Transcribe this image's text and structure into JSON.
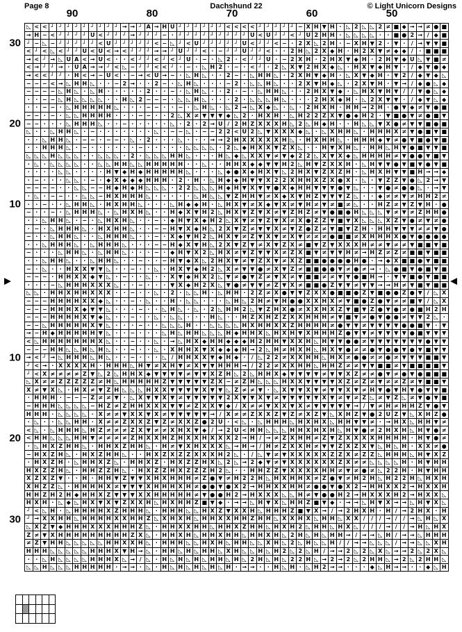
{
  "header": {
    "page_label": "Page 8",
    "title": "Dachshund 22",
    "copyright": "© Light Unicorn Designs"
  },
  "chart": {
    "cols": 53,
    "rows": 68,
    "column_labels": [
      {
        "text": "90",
        "line": 6
      },
      {
        "text": "80",
        "line": 16
      },
      {
        "text": "70",
        "line": 26
      },
      {
        "text": "60",
        "line": 36
      },
      {
        "text": "50",
        "line": 46
      }
    ],
    "row_labels_left": [
      {
        "text": "30",
        "row": 3
      },
      {
        "text": "20",
        "row": 13
      },
      {
        "text": "10",
        "row": 23
      },
      {
        "text": "10",
        "row": 42
      },
      {
        "text": "20",
        "row": 52
      },
      {
        "text": "30",
        "row": 62
      }
    ],
    "center_row_markers": {
      "left": "▶",
      "right": "◀"
    },
    "symbols_used": [
      "◺",
      "<",
      "┘",
      "→",
      "A",
      "H",
      "U",
      "−",
      "·",
      "2",
      "Z",
      "X",
      "▼",
      "◆",
      "●",
      "■",
      "≠",
      "/"
    ],
    "grid_rows": [
      "◺<<┘┘┘┘┘┘┘┘┘→→┘A→HU┘┘┘┘┘┘<<<<┘┘┘┘┘−XH▼H·◺2◺◺2≠■◆→→≠●■",
      "→H−<┘┘┘┘U<┘┘┘→┘┘┘−·┘┘┘┘┘┘┘┘┘U<U┘┘<┘U2HH·◺◺◺◺··■●2→/◆■■",
      "┘−◺−┘┘┘┘┘<U┘┘┘┘┘<−◺┘<U┘┘┘┘┘U<┘┘<−·2X◺2H·−XH▼2·▼·/→▼▼■",
      "<┘<◺<┘┘U<U<→<┘┘┘→→┘U┘┘<·−┘┘U┘┘<··2H◺2X◆H·H2X▼≠◆◆/·■■■",
      "→<┘→◺UA<→U<··<┘┘<┘<┘U·−·◺2·<┘┘U·−2XH·2HX▼◆H·2H▼◆U◺▼■≠",
      "<→┘┘→·UA→→┘<◺−┘┘<<┘·−·◺H2·−·<┘·2◺X▼2HX◆◺·HX▼◆H▼·/◆▼●◆",
      "→<<┘┘·H<→−U<·−→<U→−·◺H◺··2−·◺HH◺·2XH▼◆H·◺X▼◆H·▼2/◆▼◆◺",
      "−−−<→◺HH◺··−2→··2−·◺H◺···−2·◺◺H◺··2X▼H◆◺·2X▼H·▼→/◆●◺◆",
      "−−−−◺H◺·◺H·····2··−·◺H◺··2·−·◺HH◺··2HX▼◆·◺HX▼H▼//▼●◺◆",
      "··−−◺H◺◺◺◺··H◺2−−−·◺◺H◺···2·◺◺◺H◺···2HX◆H·◺2X▼▼·/◆▼◺◆",
      "··−−·◺HHHHH◺···−−··−·◺H◺·◺2→◺X◆◺·◺·2HXH·HH→2H·●▼◆≠▼●■",
      "−−·−·◺◺HHHH···−−··2◺X≠▼▼▼◆◺2·HXH·◺H22ZX▼●◆H2·▼■●▼≠●■▼",
      "−−···◺HHH◺··−·····◺·2·2→U/2HZXXXH◺2◺H◆H··H◺◺▼X●≠▼▼■●■",
      "◺··◺HH◺·−·······◺·−−◺·−−22<U2◺▼XXX◆◺·◺XHH◺·HHHX≠▼●■▼■",
      "··◺HH◺·−−·−−·◺·2···◺···→→2HXXXXXH◺·HXHH◺·HHH◆▼≠●▼■●▼■",
      "··HHH◺·−······−···_·◺◺◺◺·2◺◆HXX▼ZX◺··H▼XH◺·HH◺H▼●■▼▼■",
      "◺◺◺H◺◺◺··◺◺◺·2·◺◺◺HH◺···H◺◆◺XX▼≠▼◆22◺X▼X◆◺HHHH≠▼●●▼■▼",
      "·◺·◺◺◺◺··◺◺HH◺◺HHHHH··◺··HHX◆◆▼▼H2◺H▼ZXXH·◺H▼▼●▼■▼●▼■",
      "····◺◺····H▼◆H◆HHHHH◺···◺◆●X◆HX▼◺2HX▼ZXZH·◺HXH▼▼■H→→◆",
      "·−···◺◺·−·◆X◆◆◆HHH·2·H·◺H◆◆H▼▼X22XHHXZX●X·◺·▼ZZ▼●◺2→▼",
      "−−−−··◺◺−−H◆H◆H◺◺◺·22◺◺◺H◆H▼X▼▼●X◆HH▼▼▼●▼◺··▼●≠●●◺·→▼",
      "·◺·−−··◺◺−HXHHH◺·····◺H◺◺▼ZHH▼≠X◆X▼HZ▼▼▼Z◺··◆≠≠▼≠HH2≠",
      "··−··◺HH◺·HXHH◺···◺H◆◆H·◺HX▼≠X◆▼X≠▼H≠▼≠■≠◺··HZ≠▼Z▼H·●",
      "−··−·◺HHH◺·◺HXH◺··H◆X▼H2◺HX▼Z▼X≠▼ZHZ≠▼●■●H◺◺◺▼≠▼≠ZHH●",
      "··◺HH◺·−·◺HXH◺··−·◆H▼X◆H2◺X▼≠▼Z▼X≠X●ZZ▼■▼X◺◺◺XZ▼●≠▼≠●",
      "·−·◺HHH◺·HXHH◺··−−H▼X◆H◺2X▼Z≠▼▼X≠▼Z●Z≠▼■▼ZH·HH▼▼▼≠≠▼●",
      "−··◺HH◺··◺HHH◺··−·X◆▼H2◺HX▼≠Z▼X▼≠X▼≠≠≠●■■≠XHHHX●▼●●●●",
      "··◺HHH◺·◺HHH◺···−−H◆X▼H◺2X▼Z▼≠X▼ZX≠■▼Z▼XXXH≠≠▼≠≠▼■■▼■",
      "−···◺HH◺·◺HH◺···−·◆H▼X2◺HX≠▼Z▼▼X≠ZX■▼≠▼▼H≠→HZ≠Z≠■■▼■■",
      "··◺HH◺··◺HH◺··−··−H▼◆X◺2HX▼≠▼ZX▼≠XZ■■●●●●H●·→◆X■■●▼■■",
      "−·◺··HXX▼▼◺··−··◺·HX▼◆H2◺X≠▼▼●≠X▼Z≠■■●●▼≠●≠→·◺●■▼●■▼■",
      "−−−·HHXX◆▼◺·−··◺··X▼◆HX2◺▼≠●▼Z≠▼X≠▼■■≠≠▼▼●■H→·▼▼■●▼■■",
      "···−◺HHHXXX◺··−···▼X◆H2X◺▼●≠▼▼≠Z▼X≠■■●Z▼▼≠▼▼→→H≠▼■▼■■",
      "◺◺·HHXHHXXX··−··◺·2·◺◺H·◺HH·2Z≠X●▼▼ZXX●■■●Z▼■●●Z●▼/◺X",
      "−−−HHHHXX◆◺··−·◺··H·◺◺···◺H◺2H≠▼H●●XXHX≠▼■●Z●▼≠≠■▼/◺X",
      "−−−HHHX◆▼▼◺···−··◺H◺·◺·2◺HH2◺▼ZHX●≠XXHXZ▼■▼Z●▼●≠●■H2H",
      "−−−HHHHX▼◆◺··−··◺·◺◺···H◺··HZXHZZXXHHH≠▼■▼≠●▼●●≠▼▼2◺·",
      "−−◺HHHHHX▼◺···−··◺◺◺H··◺◺◺◺HXHHXXZHHHH≠●▼▼≠▼▼▼▼●●■▼·▼",
      "→−H◆HHHHH▼◺··−···◺H◺HH◺◺◺H◆HHX◺HXH▼XHHHZ●▼▼≠▼▼▼▼●■▼▼▼",
      "<◺HHHHHHHX◺··−··◺·→◺HX◆HH◆◆◆H2HH▼XXH◺H▼▼●●≠▼▼▼▼▼▼▼●▼▼",
      "−−−HH◺◺H◺H◺··−··◺·XHHX▼X◆◆◆H→2◺H≠HXH◺HX▼●≠≠●▼●●▼●▼■▼▼",
      "→<┘→◺HHH◺H◺··−···◺/HHXX▼◆H◆·/◺22≠XXHH◺HX≠●●≠≠●≠▼▼▼■■▼",
      "┘<→·XXXXH·HHH◺H▼≠XH▼≠X▼▼HHH→/22≠XXHH◺HHZ≠≠▼▼■■≠▼■■■■▼",
      "┘<X≠≠≠≠Z▼◺2◺HHX◆▼▼▼▼≠▼▼XZH◺2◺HHX◆▼▼▼▼≠▼▼XZ≠≠●▼≠●▼●■■■",
      "◺X≠≠ZZZZZ≠H◺HHHHHZ▼▼▼▼▼ZX−≠ZH◺◺◺HXX▼▼▼▼XZ≠Z≠▼≠≠Z≠▼■■▼",
      "X≠▼X◺·HX≠▼ZH◺◺◺HXX▼▼▼▼X▼▼◺Z≠≠▼·◺X▼▼X▼≠▼▼X▼≠H▼●▼H▼●▼▼■",
      "·HHH·−−−Z≠≠▼·◺X▼▼X▼≠▼▼▼▼▼2X▼▼X▼≠▼▼▼▼▼X▼≠▼≠Z◺≠▼Z◺≠▼●▼■",
      "−HHH◺◺◺◺−HZ≠ZHHXXX▼▼≠ZXX▼◆/X≠≠▼XX▼X≠▼▼▼▼▼→/▼≠H≠HHZ▼●▼",
      "HHH·◺◺◺◺·X≠≠▼XX▼X≠▼▼▼▼▼→/X≠≠ZXXZ▼Z≠XZ▼◺XHZ▼●2UZ▼◺XHZ●",
      "·◺··◺◺HH·X≠≠ZXXZ▼Z≠XXZ●2U·<◺·◺HHH◺HXHX◺HH▼▼≠·→HX◺HH▼≠",
      "<◺·◺HHH◺HZ≠≠≠ZX▼≠≠XHX▼◆/→2U<HH◺◺◺HHXHXH◺H▼●≠2HXH◺H▼●≠",
      "<HH◺◺◺HH▼≠≠≠≠ZHXXHZHXXHXXX2→H/→≠ZXHH≠Z▼ZXXXXHHHH·H▼●≠",
      "·◺HXZHH◺·HHXZHH◺·H≠▼XHXXX◺→H→/H≠ZXXH≠▼▼ZXZX▼◺H◺H·XX≠●",
      "−HXZH◺·HXZHH◺··HXZXZZXXXH2◺·/◺▼≠▼XXXXXZZX≠ZZ◺HHH◺H▼XZ",
      "·HXZH·◺HHXZ◺·HHXZ·HXZZHX◺2◺→2◆▼≠▼XXXXXXZX≠≠◺◺◺◺H·H▼HH",
      "HXZZH◺·HHZZH◺·HXZZHXZZZH2◺··HHZZ▼XXXXHH≠▼≠●≠◺22H·H▼HH",
      "XZXZ▼··H·HH▼Z▼▼XHXHHH≠Z●▼≠H22H◺HXHHX≠Z●▼≠H2H◺H22H◺HXH",
      "XHZZ◺·HHHHX≠▼▼▼XHHHXH≠●●▼●X2→HHXXHH≠●●▼●X2→HHXX2→HXXH",
      "HHZH2H◆HHXZ▼▼▼XXHHHHH≠▼●●H2→HXXX◺◺H≠▼●●H2→HXXXH2→HXX◺",
      "HXH·◺◆◺HX▼X▼ZXXH◺HXHHZ■▼◆·→→◺H▼X◺HHZ■▼◆·→→◺H▼X→→◺H▼X◺",
      "┘<◺H·◺HHHHXZHHH◺·HHH◺◺HXZ▼XXH◺HHHZ■▼X→/→2HXH·H/→2HX·H",
      "┘→XXHH◺HHHHXXHHZ◺XHXH◺HHXXHHZHH◺XXHX◺HH◺XX///→//→◺H◺X",
      "◺XZ▼◆HHHXXXHHHZ◺·HHXXHH◺HHXZHH◺HXH2◺HH◺HX◺///→//→H◺HX",
      "Z≠▼XHHHHHHHHHZX◺·HHXH◺HHXHH◺HHXH◺2H◺H◺HH→/→→◺H/→→◺HHH",
      "≠Z▼HH◺◺◺◺◺HHXXH◺·HHH◺◺HXH◺HH◺◺XH◺2◺H◺◺H//→→◺◺◺/→→◺◺XH",
      "HHH◺◺◺◺◺HHHX▼H→◺·HH◺H◺HH◺XH◺◺H◺H2◺2◺H/→→2◺2◺X◺→→2◺2X◺",
      "··◺H◺◺◺◺HHHX◺→/◺·H◺H◺H◺HH◺H◺2H◺H◺22H◺→2→2◺2HH◺→2◺2HH◺",
      "◺◺H◺◺◺HHHHH·→→·◺·H◺H◺H◺H◺H·→→··H◺H·◺H2→→···◆◺H→→··◆◺H"
    ]
  },
  "page_map": {
    "cols": 6,
    "rows": 3,
    "highlight": {
      "row": 1,
      "col": 1
    },
    "highlight_color": "#999999"
  }
}
